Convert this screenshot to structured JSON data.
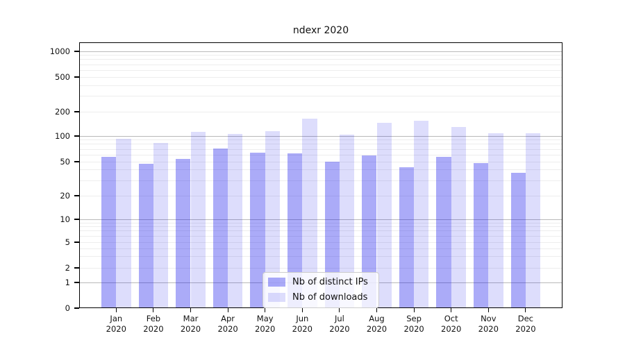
{
  "chart_data": {
    "type": "bar",
    "title": "ndexr 2020",
    "x_labels": [
      {
        "month": "Jan",
        "year": "2020"
      },
      {
        "month": "Feb",
        "year": "2020"
      },
      {
        "month": "Mar",
        "year": "2020"
      },
      {
        "month": "Apr",
        "year": "2020"
      },
      {
        "month": "May",
        "year": "2020"
      },
      {
        "month": "Jun",
        "year": "2020"
      },
      {
        "month": "Jul",
        "year": "2020"
      },
      {
        "month": "Aug",
        "year": "2020"
      },
      {
        "month": "Sep",
        "year": "2020"
      },
      {
        "month": "Oct",
        "year": "2020"
      },
      {
        "month": "Nov",
        "year": "2020"
      },
      {
        "month": "Dec",
        "year": "2020"
      }
    ],
    "series": [
      {
        "name": "Nb of distinct IPs",
        "color": "rgba(15,15,235,0.35)",
        "values": [
          57,
          47,
          54,
          72,
          64,
          63,
          50,
          59,
          43,
          57,
          48,
          37
        ]
      },
      {
        "name": "Nb of downloads",
        "color": "rgba(15,15,235,0.14)",
        "values": [
          92,
          83,
          113,
          106,
          115,
          165,
          105,
          145,
          155,
          130,
          108,
          108
        ]
      }
    ],
    "y_axis": {
      "scale": "symlog",
      "ticks": [
        0,
        1,
        2,
        5,
        10,
        20,
        50,
        100,
        200,
        500,
        1000
      ],
      "tick_labels": [
        "0",
        "1",
        "2",
        "5",
        "10",
        "20",
        "50",
        "100",
        "200",
        "500",
        "1000"
      ]
    },
    "grid": {
      "major_values": [
        1,
        10,
        100,
        1000
      ],
      "minor_values": [
        2,
        3,
        4,
        5,
        6,
        7,
        8,
        9,
        20,
        30,
        40,
        50,
        60,
        70,
        80,
        90,
        200,
        300,
        400,
        500,
        600,
        700,
        800,
        900
      ],
      "major_color": "#b9b9b9",
      "minor_color": "#ededed"
    },
    "legend": {
      "position": "lower center"
    }
  }
}
